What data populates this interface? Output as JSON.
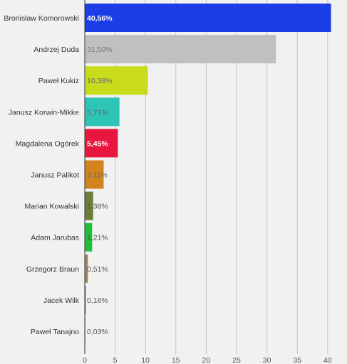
{
  "chart_data": {
    "type": "bar",
    "orientation": "horizontal",
    "title": "",
    "xlabel": "",
    "ylabel": "",
    "grid": true,
    "xlim": [
      0,
      42
    ],
    "xticks": [
      "0",
      "5",
      "10",
      "15",
      "20",
      "25",
      "30",
      "35",
      "40"
    ],
    "categories": [
      "Bronisław Komorowski",
      "Andrzej Duda",
      "Paweł Kukiz",
      "Janusz Korwin-Mikke",
      "Magdalena Ogórek",
      "Janusz Palikot",
      "Marian Kowalski",
      "Adam Jarubas",
      "Grzegorz Braun",
      "Jacek Wilk",
      "Paweł Tanajno"
    ],
    "values": [
      40.56,
      31.5,
      10.38,
      5.71,
      5.45,
      3.11,
      1.38,
      1.21,
      0.51,
      0.16,
      0.03
    ],
    "value_labels": [
      "40,56%",
      "31,50%",
      "10,38%",
      "5,71%",
      "5,45%",
      "3,11%",
      "1,38%",
      "1,21%",
      "0,51%",
      "0,16%",
      "0,03%"
    ],
    "colors": [
      "#1a3de6",
      "#c0c0c0",
      "#c9dc1c",
      "#2ec4b6",
      "#e8173f",
      "#d4841e",
      "#6b7f3a",
      "#1fbf3a",
      "#a6855e",
      "#7a6a5e",
      "#8a8a8a"
    ],
    "value_label_colors": [
      "#ffffff",
      "#777777",
      "#666666",
      "#666666",
      "#ffffff",
      "#666666",
      "#555555",
      "#555555",
      "#555555",
      "#555555",
      "#555555"
    ],
    "value_label_bold": [
      true,
      false,
      false,
      false,
      true,
      false,
      false,
      false,
      false,
      false,
      false
    ]
  }
}
